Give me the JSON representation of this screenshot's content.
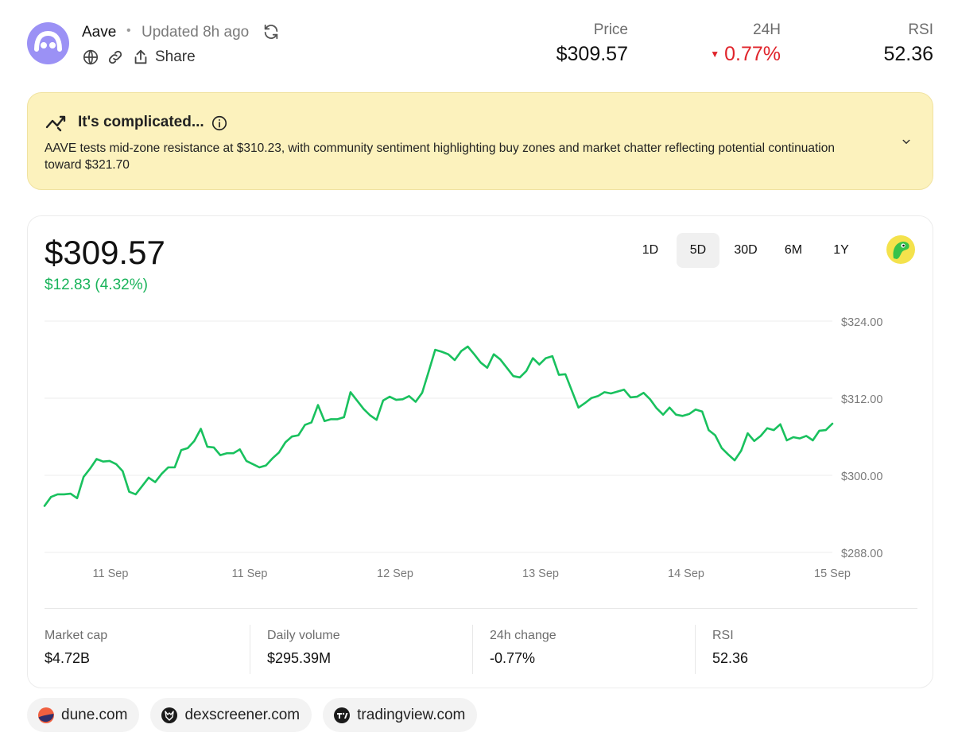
{
  "header": {
    "token_name": "Aave",
    "separator": "•",
    "updated": "Updated 8h ago",
    "share_label": "Share",
    "logo_color": "#9b91f5",
    "icons": [
      "aave-logo",
      "refresh-icon",
      "globe-icon",
      "link-icon",
      "share-icon"
    ]
  },
  "stats": {
    "price_label": "Price",
    "price_value": "$309.57",
    "change_label": "24H",
    "change_value": "0.77%",
    "change_direction": "down",
    "change_color": "#e0242b",
    "rsi_label": "RSI",
    "rsi_value": "52.36"
  },
  "summary": {
    "title": "It's complicated...",
    "text": "AAVE tests mid-zone resistance at $310.23, with community sentiment highlighting buy zones and market chatter reflecting potential continuation toward $321.70",
    "background": "#fcf2bd"
  },
  "chart_card": {
    "price": "$309.57",
    "change": "$12.83 (4.32%)",
    "change_color": "#19b35a",
    "ranges": [
      "1D",
      "5D",
      "30D",
      "6M",
      "1Y"
    ],
    "active_range": "5D"
  },
  "chart_data": {
    "type": "line",
    "y_tick_labels": [
      "$324.00",
      "$312.00",
      "$300.00",
      "$288.00"
    ],
    "y_ticks": [
      324,
      312,
      300,
      288
    ],
    "ylim": [
      288,
      324
    ],
    "x_tick_labels": [
      "11 Sep",
      "11 Sep",
      "12 Sep",
      "13 Sep",
      "14 Sep",
      "15 Sep"
    ],
    "grid": true,
    "line_color": "#19c15e",
    "series": [
      {
        "values": [
          296.6,
          298.0,
          298.4,
          298.4,
          298.5,
          297.8,
          301.1,
          302.4,
          303.9,
          303.5,
          303.6,
          303.1,
          302.0,
          298.8,
          298.4,
          299.7,
          301.0,
          300.3,
          301.6,
          302.6,
          302.6,
          305.3,
          305.6,
          306.7,
          308.6,
          305.8,
          305.7,
          304.5,
          304.8,
          304.8,
          305.4,
          303.6,
          303.1,
          302.6,
          302.9,
          304.0,
          304.9,
          306.5,
          307.4,
          307.6,
          309.2,
          309.6,
          312.3,
          309.8,
          310.1,
          310.1,
          310.4,
          314.3,
          313.0,
          311.7,
          310.7,
          310.0,
          313.0,
          313.6,
          313.1,
          313.2,
          313.7,
          312.8,
          314.2,
          317.5,
          320.9,
          320.6,
          320.2,
          319.3,
          320.7,
          321.4,
          320.2,
          318.9,
          318.1,
          320.2,
          319.4,
          318.1,
          316.8,
          316.6,
          317.6,
          319.6,
          318.6,
          319.6,
          319.9,
          317.0,
          317.1,
          314.5,
          311.9,
          312.6,
          313.4,
          313.7,
          314.3,
          314.1,
          314.4,
          314.7,
          313.5,
          313.6,
          314.2,
          313.2,
          311.8,
          310.8,
          311.9,
          310.8,
          310.6,
          310.9,
          311.6,
          311.3,
          308.4,
          307.6,
          305.6,
          304.6,
          303.7,
          305.2,
          307.9,
          306.7,
          307.5,
          308.7,
          308.4,
          309.3,
          306.8,
          307.3,
          307.1,
          307.5,
          306.8,
          308.3,
          308.4,
          309.4
        ]
      }
    ]
  },
  "metrics": [
    {
      "label": "Market cap",
      "value": "$4.72B"
    },
    {
      "label": "Daily volume",
      "value": "$295.39M"
    },
    {
      "label": "24h change",
      "value": "-0.77%"
    },
    {
      "label": "RSI",
      "value": "52.36"
    }
  ],
  "sources": [
    {
      "label": "dune.com",
      "icon": "dune-icon"
    },
    {
      "label": "dexscreener.com",
      "icon": "dexscreener-icon"
    },
    {
      "label": "tradingview.com",
      "icon": "tradingview-icon"
    }
  ]
}
